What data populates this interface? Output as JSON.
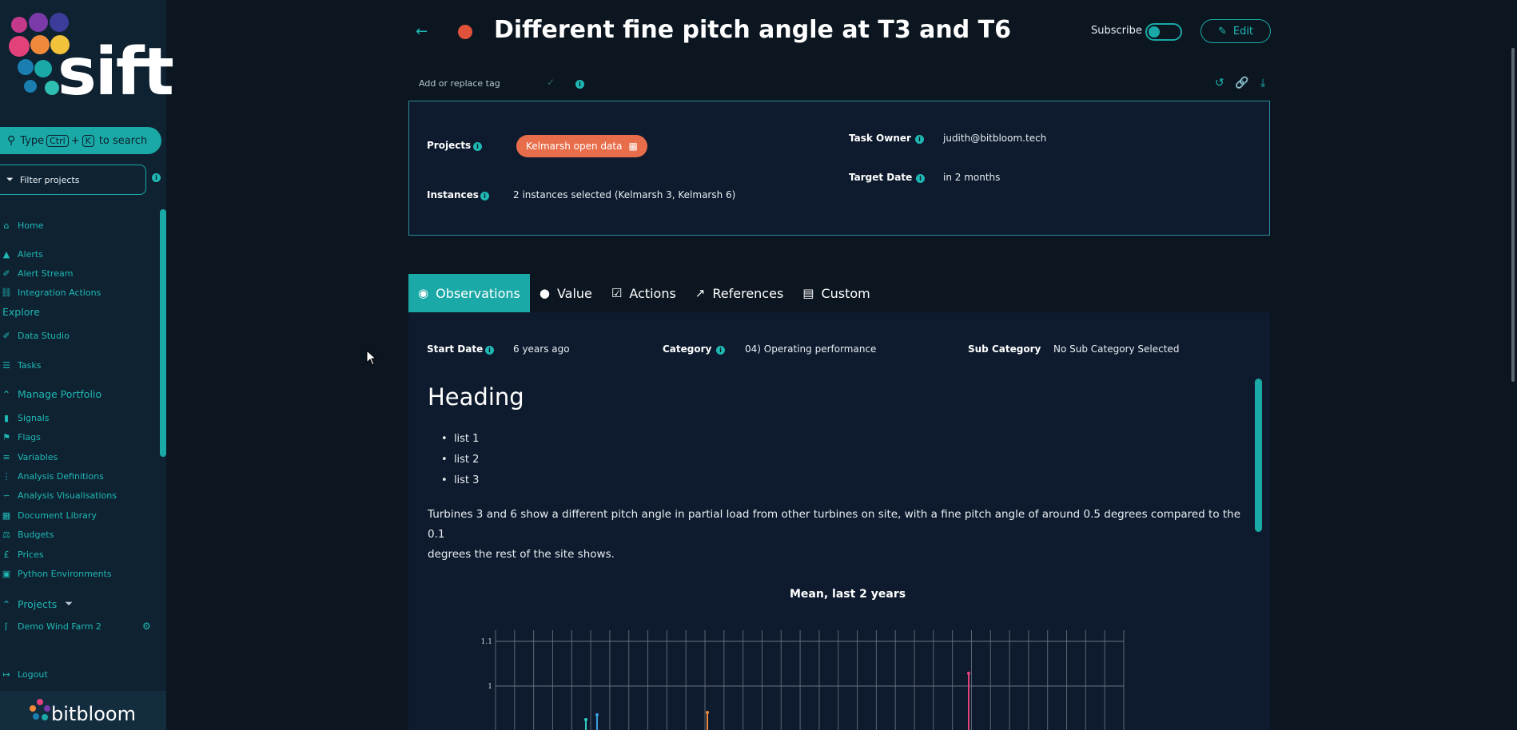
{
  "sidebar": {
    "logo_text": "sift",
    "search": {
      "prefix": "Type",
      "key1": "Ctrl",
      "plus": "+",
      "key2": "K",
      "suffix": "to search"
    },
    "filter_placeholder": "Filter projects",
    "items": [
      {
        "label": "Home",
        "icon": "home-icon"
      },
      {
        "label": "Alerts",
        "icon": "alert-icon"
      },
      {
        "label": "Alert Stream",
        "icon": "stream-icon"
      },
      {
        "label": "Integration Actions",
        "icon": "link-icon"
      },
      {
        "label": "Data Studio",
        "icon": "studio-icon"
      },
      {
        "label": "Tasks",
        "icon": "tasks-icon"
      },
      {
        "label": "Signals",
        "icon": "signals-icon"
      },
      {
        "label": "Flags",
        "icon": "flag-icon"
      },
      {
        "label": "Variables",
        "icon": "variables-icon"
      },
      {
        "label": "Analysis Definitions",
        "icon": "list-icon"
      },
      {
        "label": "Analysis Visualisations",
        "icon": "chart-icon"
      },
      {
        "label": "Document Library",
        "icon": "document-icon"
      },
      {
        "label": "Budgets",
        "icon": "scale-icon"
      },
      {
        "label": "Prices",
        "icon": "pound-icon"
      },
      {
        "label": "Python Environments",
        "icon": "cube-icon"
      },
      {
        "label": "Demo Wind Farm 2",
        "icon": "windfarm-icon"
      },
      {
        "label": "Logout",
        "icon": "logout-icon"
      }
    ],
    "sections": {
      "explore": "Explore",
      "manage": "Manage Portfolio",
      "projects": "Projects"
    },
    "footer_brand": "bitbloom"
  },
  "task": {
    "title": "Different fine pitch angle at T3 and T6",
    "subscribe_label": "Subscribe",
    "edit_label": "Edit",
    "tag_placeholder": "Add or replace tag"
  },
  "details": {
    "projects_label": "Projects",
    "project_tag": "Kelmarsh open data",
    "instances_label": "Instances",
    "instances_value": "2 instances selected (Kelmarsh 3, Kelmarsh 6)",
    "owner_label": "Task Owner",
    "owner_value": "judith@bitbloom.tech",
    "target_label": "Target Date",
    "target_value": "in 2 months"
  },
  "tabs": [
    {
      "label": "Observations",
      "icon": "eye-icon",
      "active": true
    },
    {
      "label": "Value",
      "icon": "lightbulb-icon"
    },
    {
      "label": "Actions",
      "icon": "checkbox-icon"
    },
    {
      "label": "References",
      "icon": "external-link-icon"
    },
    {
      "label": "Custom",
      "icon": "list-alt-icon"
    }
  ],
  "observations": {
    "start_label": "Start Date",
    "start_value": "6 years ago",
    "category_label": "Category",
    "category_value": "04) Operating performance",
    "subcategory_label": "Sub Category",
    "subcategory_value": "No Sub Category Selected",
    "heading": "Heading",
    "list": [
      "list 1",
      "list 2",
      "list 3"
    ],
    "paragraph_line1": "Turbines 3 and 6 show a different pitch angle in partial load from other turbines on site, with a fine pitch angle of around 0.5 degrees compared to the 0.1",
    "paragraph_line2": "degrees the rest of the site shows."
  },
  "chart_data": {
    "type": "scatter",
    "title": "Mean, last 2 years",
    "y_tick_labels": [
      "1.1",
      "1"
    ],
    "grid": true
  }
}
